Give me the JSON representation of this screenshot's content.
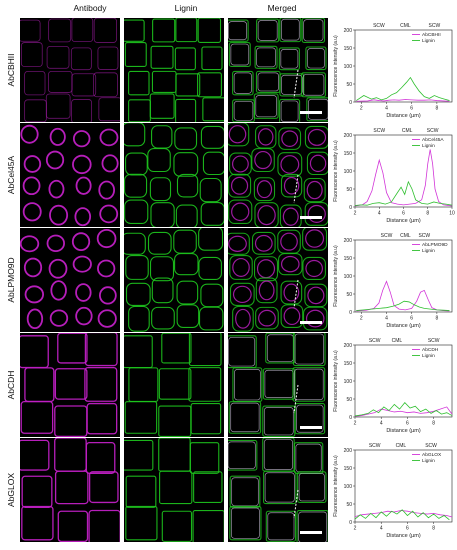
{
  "columns": {
    "antibody": "Antibody",
    "lignin": "Lignin",
    "merged": "Merged"
  },
  "colors": {
    "magenta": "#d235d8",
    "green": "#2fbf2f",
    "antibody_stain": "#c020c4",
    "lignin_stain": "#1ec81e",
    "merged_stain": "#d8c8e8"
  },
  "rows": [
    {
      "letter": "(a)",
      "label": "AbCBHII"
    },
    {
      "letter": "(b)",
      "label": "AbCel45A"
    },
    {
      "letter": "(c)",
      "label": "AbLPMO9D"
    },
    {
      "letter": "(d)",
      "label": "AbCDH"
    },
    {
      "letter": "(e)",
      "label": "AbGLOX"
    }
  ],
  "chart_data": [
    {
      "type": "line",
      "ylabel": "Fluorescence intensity (a.u)",
      "xlabel": "Distance (µm)",
      "ylim": [
        0,
        200
      ],
      "yticks": [
        0,
        50,
        100,
        150,
        200
      ],
      "xlim": [
        1.5,
        9.2
      ],
      "xticks": [
        2,
        4,
        6,
        8
      ],
      "annotations": [
        {
          "text": "SCW",
          "x": 3.4
        },
        {
          "text": "CML",
          "x": 5.5
        },
        {
          "text": "SCW",
          "x": 7.8
        }
      ],
      "legend": "top-right",
      "series": [
        {
          "name": "AbCBHII",
          "color": "magenta",
          "x": [
            1.6,
            2.5,
            3.0,
            3.4,
            3.8,
            4.2,
            4.6,
            5.0,
            5.5,
            6.0,
            6.5,
            7.0,
            7.5,
            8.0,
            8.5,
            9.0
          ],
          "y": [
            2,
            3,
            6,
            4,
            3,
            5,
            6,
            5,
            7,
            6,
            5,
            5,
            6,
            4,
            3,
            2
          ]
        },
        {
          "name": "Lignin",
          "color": "green",
          "x": [
            1.6,
            2.2,
            2.8,
            3.2,
            3.6,
            4.0,
            4.4,
            4.8,
            5.2,
            5.6,
            5.9,
            6.2,
            6.6,
            7.0,
            7.4,
            7.8,
            8.2,
            8.6,
            9.0
          ],
          "y": [
            4,
            18,
            8,
            12,
            6,
            10,
            20,
            26,
            40,
            55,
            68,
            50,
            30,
            15,
            10,
            18,
            12,
            8,
            4
          ]
        }
      ]
    },
    {
      "type": "line",
      "ylabel": "Fluorescence intensity (a.u)",
      "xlabel": "Distance (µm)",
      "ylim": [
        0,
        200
      ],
      "yticks": [
        0,
        50,
        100,
        150,
        200
      ],
      "xlim": [
        2,
        10
      ],
      "xticks": [
        2,
        4,
        6,
        8,
        10
      ],
      "annotations": [
        {
          "text": "SCW",
          "x": 4.0
        },
        {
          "text": "CML",
          "x": 6.3
        },
        {
          "text": "SCW",
          "x": 8.4
        }
      ],
      "legend": "top-right",
      "series": [
        {
          "name": "AbCel45A",
          "color": "magenta",
          "x": [
            2.0,
            2.6,
            3.0,
            3.4,
            3.7,
            4.0,
            4.3,
            4.6,
            5.0,
            5.5,
            6.0,
            6.5,
            7.0,
            7.5,
            7.8,
            8.0,
            8.2,
            8.4,
            8.6,
            8.9,
            9.3,
            10.0
          ],
          "y": [
            3,
            6,
            15,
            45,
            90,
            130,
            95,
            40,
            12,
            8,
            6,
            8,
            10,
            20,
            60,
            120,
            160,
            120,
            50,
            15,
            6,
            3
          ]
        },
        {
          "name": "Lignin",
          "color": "green",
          "x": [
            2.0,
            2.5,
            3.0,
            3.5,
            4.0,
            4.5,
            5.0,
            5.5,
            5.8,
            6.1,
            6.4,
            6.7,
            7.0,
            7.5,
            8.0,
            8.5,
            9.0,
            9.5,
            10.0
          ],
          "y": [
            4,
            6,
            5,
            10,
            12,
            8,
            14,
            40,
            55,
            35,
            70,
            50,
            20,
            10,
            8,
            14,
            10,
            8,
            5
          ]
        }
      ]
    },
    {
      "type": "line",
      "ylabel": "Fluorescence intensity (a.u)",
      "xlabel": "Distance (µm)",
      "ylim": [
        0,
        200
      ],
      "yticks": [
        0,
        50,
        100,
        150,
        200
      ],
      "xlim": [
        1.5,
        9.2
      ],
      "xticks": [
        2,
        4,
        6,
        8
      ],
      "annotations": [
        {
          "text": "SCW",
          "x": 4.0
        },
        {
          "text": "CML",
          "x": 5.5
        },
        {
          "text": "SCW",
          "x": 7.0
        }
      ],
      "legend": "top-right",
      "series": [
        {
          "name": "AbLPMO9D",
          "color": "magenta",
          "x": [
            1.6,
            2.4,
            3.0,
            3.4,
            3.7,
            4.0,
            4.3,
            4.6,
            5.0,
            5.5,
            6.0,
            6.4,
            6.7,
            7.0,
            7.3,
            7.6,
            8.0,
            8.5,
            9.0
          ],
          "y": [
            3,
            5,
            10,
            25,
            60,
            85,
            55,
            18,
            8,
            6,
            10,
            30,
            55,
            60,
            35,
            12,
            6,
            4,
            3
          ]
        },
        {
          "name": "Lignin",
          "color": "green",
          "x": [
            1.6,
            2.2,
            2.8,
            3.4,
            4.0,
            4.5,
            5.0,
            5.4,
            5.8,
            6.2,
            6.6,
            7.0,
            7.5,
            8.0,
            8.5,
            9.0
          ],
          "y": [
            4,
            6,
            8,
            10,
            12,
            16,
            22,
            30,
            28,
            20,
            14,
            10,
            8,
            6,
            5,
            4
          ]
        }
      ]
    },
    {
      "type": "line",
      "ylabel": "Fluorescence intensity (a.u)",
      "xlabel": "Distance (µm)",
      "ylim": [
        0,
        200
      ],
      "yticks": [
        0,
        50,
        100,
        150,
        200
      ],
      "xlim": [
        2,
        9.4
      ],
      "xticks": [
        2,
        4,
        6,
        8
      ],
      "annotations": [
        {
          "text": "SCW",
          "x": 3.5
        },
        {
          "text": "CML",
          "x": 5.2
        },
        {
          "text": "SCW",
          "x": 8.0
        }
      ],
      "legend": "top-right",
      "series": [
        {
          "name": "AbCDH",
          "color": "magenta",
          "x": [
            2.0,
            2.5,
            3.0,
            3.5,
            4.0,
            4.5,
            5.0,
            5.5,
            6.0,
            6.5,
            7.0,
            7.5,
            8.0,
            8.5,
            9.0,
            9.4
          ],
          "y": [
            2,
            4,
            8,
            12,
            22,
            18,
            14,
            16,
            12,
            14,
            10,
            12,
            16,
            22,
            28,
            8
          ]
        },
        {
          "name": "Lignin",
          "color": "green",
          "x": [
            2.0,
            2.5,
            3.0,
            3.4,
            3.8,
            4.2,
            4.6,
            5.0,
            5.4,
            5.8,
            6.2,
            6.6,
            7.0,
            7.4,
            7.8,
            8.2,
            8.6,
            9.0,
            9.4
          ],
          "y": [
            3,
            6,
            10,
            20,
            12,
            28,
            18,
            35,
            22,
            40,
            25,
            30,
            15,
            22,
            10,
            18,
            8,
            12,
            4
          ]
        }
      ]
    },
    {
      "type": "line",
      "ylabel": "Fluorescence intensity (a.u)",
      "xlabel": "Distance (µm)",
      "ylim": [
        0,
        200
      ],
      "yticks": [
        0,
        50,
        100,
        150,
        200
      ],
      "xlim": [
        2,
        9.4
      ],
      "xticks": [
        2,
        4,
        6,
        8
      ],
      "annotations": [
        {
          "text": "SCW",
          "x": 3.5
        },
        {
          "text": "CML",
          "x": 5.5
        },
        {
          "text": "SCW",
          "x": 7.8
        }
      ],
      "legend": "top-right",
      "series": [
        {
          "name": "AbGLOX",
          "color": "magenta",
          "x": [
            2.0,
            2.5,
            3.0,
            3.5,
            4.0,
            4.5,
            5.0,
            5.5,
            6.0,
            6.5,
            7.0,
            7.5,
            8.0,
            8.5,
            9.0,
            9.4
          ],
          "y": [
            15,
            20,
            22,
            24,
            26,
            30,
            28,
            32,
            30,
            26,
            24,
            22,
            24,
            20,
            18,
            14
          ]
        },
        {
          "name": "Lignin",
          "color": "green",
          "x": [
            2.0,
            2.4,
            2.8,
            3.2,
            3.6,
            4.0,
            4.4,
            4.8,
            5.2,
            5.6,
            6.0,
            6.4,
            6.8,
            7.2,
            7.6,
            8.0,
            8.4,
            8.8,
            9.2
          ],
          "y": [
            8,
            20,
            10,
            24,
            12,
            28,
            16,
            30,
            22,
            34,
            18,
            30,
            14,
            26,
            12,
            22,
            10,
            18,
            6
          ]
        }
      ]
    }
  ]
}
